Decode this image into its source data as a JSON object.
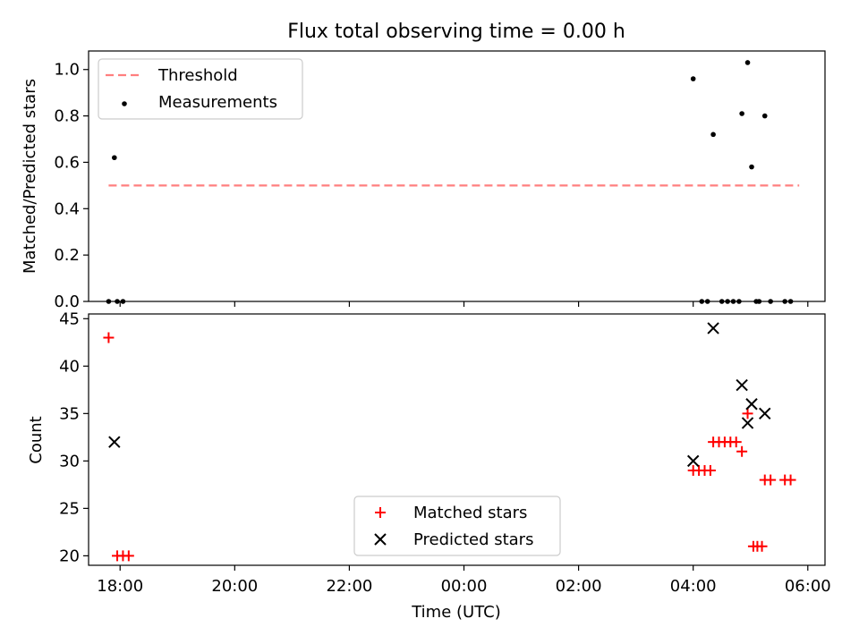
{
  "chart_data": [
    {
      "type": "scatter",
      "title": "Flux total observing time = 0.00 h",
      "xlabel": "",
      "ylabel": "Matched/Predicted stars",
      "xlim": [
        -6.55,
        6.3
      ],
      "ylim": [
        0.0,
        1.08
      ],
      "yticks": [
        0.0,
        0.2,
        0.4,
        0.6,
        0.8,
        1.0
      ],
      "yticklabels": [
        "0.0",
        "0.2",
        "0.4",
        "0.6",
        "0.8",
        "1.0"
      ],
      "legend_position": "top-left",
      "threshold": {
        "name": "Threshold",
        "y": 0.5,
        "x_range": [
          -6.2,
          5.85
        ],
        "color": "#ff7f7f",
        "style": "dashed"
      },
      "series": [
        {
          "name": "Measurements",
          "color": "#000000",
          "marker": "dot",
          "x": [
            -6.2,
            -6.1,
            -6.05,
            -5.95,
            4.0,
            4.15,
            4.25,
            4.35,
            4.5,
            4.6,
            4.7,
            4.8,
            4.85,
            4.95,
            5.02,
            5.1,
            5.15,
            5.25,
            5.35,
            5.6,
            5.7
          ],
          "y": [
            0.0,
            0.62,
            0.0,
            0.0,
            0.96,
            0.0,
            0.0,
            0.72,
            0.0,
            0.0,
            0.0,
            0.0,
            0.81,
            1.03,
            0.58,
            0.0,
            0.0,
            0.8,
            0.0,
            0.0,
            0.0
          ]
        }
      ]
    },
    {
      "type": "scatter",
      "title": "",
      "xlabel": "Time (UTC)",
      "ylabel": "Count",
      "xlim": [
        -6.55,
        6.3
      ],
      "ylim": [
        19.0,
        45.5
      ],
      "xticks": [
        -6.0,
        -4.0,
        -2.0,
        0.0,
        2.0,
        4.0,
        6.0
      ],
      "xticklabels": [
        "18:00",
        "20:00",
        "22:00",
        "00:00",
        "02:00",
        "04:00",
        "06:00"
      ],
      "yticks": [
        20,
        25,
        30,
        35,
        40,
        45
      ],
      "yticklabels": [
        "20",
        "25",
        "30",
        "35",
        "40",
        "45"
      ],
      "legend_position": "bottom-center",
      "series": [
        {
          "name": "Matched stars",
          "color": "#ff0000",
          "marker": "plus",
          "x": [
            -6.2,
            -6.05,
            -5.95,
            -5.85,
            4.0,
            4.1,
            4.2,
            4.3,
            4.35,
            4.45,
            4.55,
            4.65,
            4.75,
            4.85,
            4.95,
            5.05,
            5.12,
            5.2,
            5.25,
            5.35,
            5.6,
            5.7
          ],
          "y": [
            43,
            20,
            20,
            20,
            29,
            29,
            29,
            29,
            32,
            32,
            32,
            32,
            32,
            31,
            35,
            21,
            21,
            21,
            28,
            28,
            28,
            28
          ]
        },
        {
          "name": "Predicted stars",
          "color": "#000000",
          "marker": "x",
          "x": [
            -6.1,
            4.0,
            4.35,
            4.85,
            4.95,
            5.02,
            5.25
          ],
          "y": [
            32,
            30,
            44,
            38,
            34,
            36,
            35
          ]
        }
      ]
    }
  ]
}
